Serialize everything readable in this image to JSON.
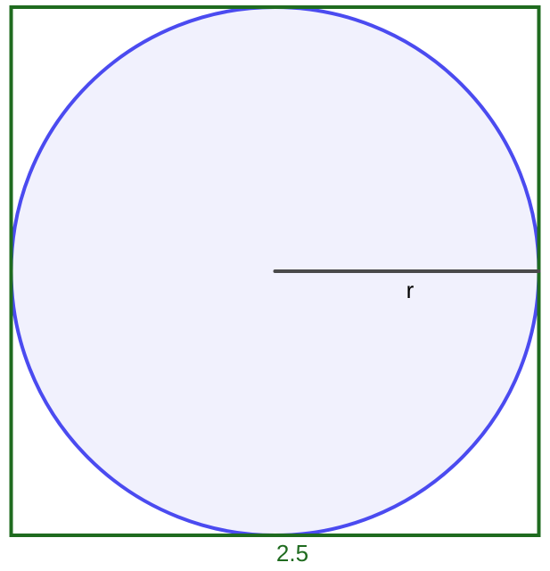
{
  "figure": {
    "side_label": "2.5",
    "radius_label": "r",
    "colors": {
      "square_stroke": "#1f6b1f",
      "side_label": "#1f6b1f",
      "circle_stroke": "#4b4bf0",
      "circle_fill": "#f1f1fd",
      "radius_stroke": "#4a4a4a",
      "radius_label": "#000000"
    }
  }
}
